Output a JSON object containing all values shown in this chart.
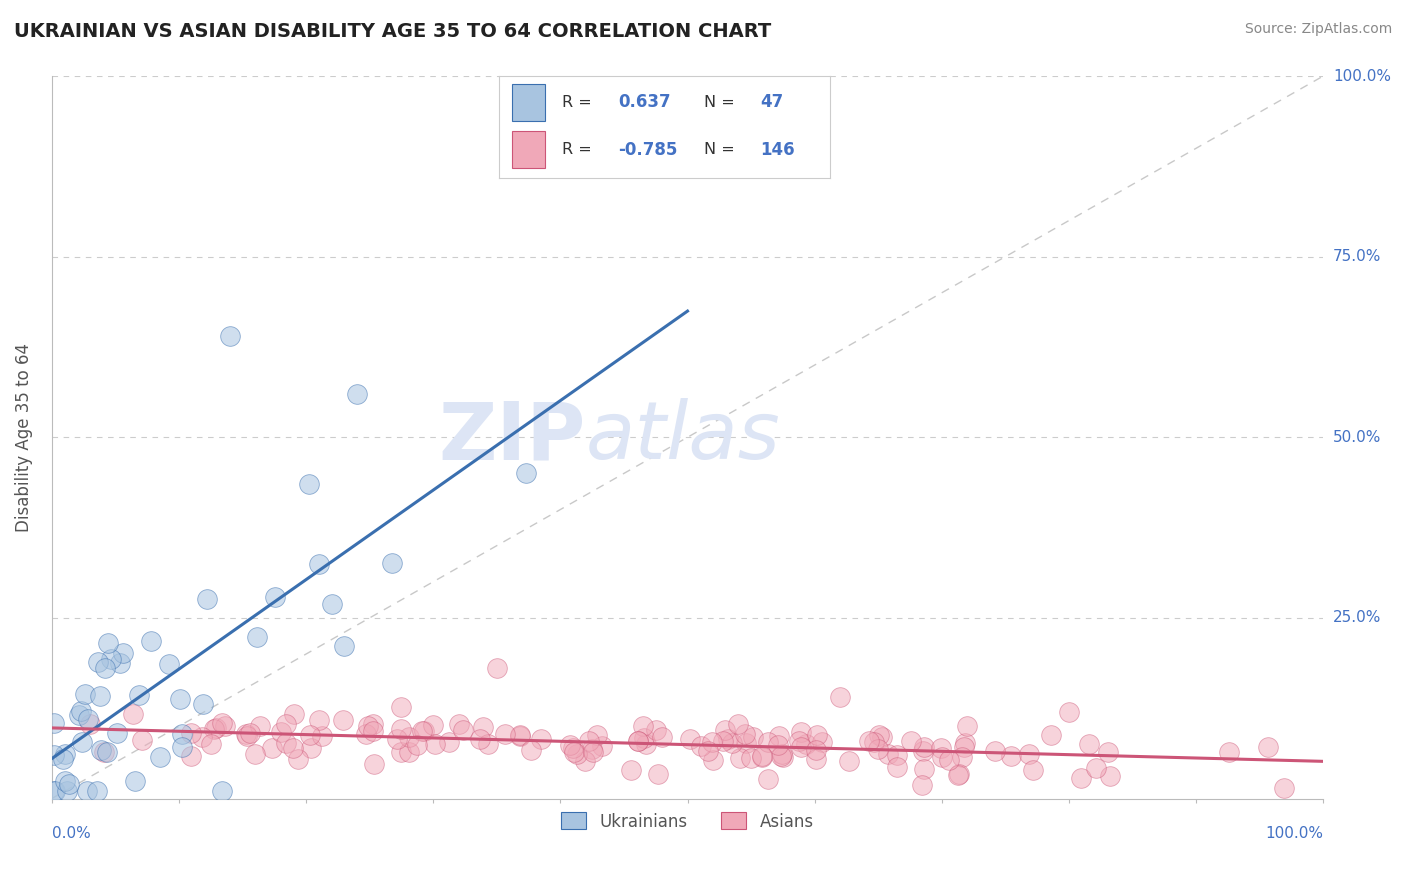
{
  "title": "UKRAINIAN VS ASIAN DISABILITY AGE 35 TO 64 CORRELATION CHART",
  "source": "Source: ZipAtlas.com",
  "ylabel": "Disability Age 35 to 64",
  "ylim": [
    0,
    1.0
  ],
  "xlim": [
    0,
    1.0
  ],
  "ukr_R": 0.637,
  "ukr_N": 47,
  "asian_R": -0.785,
  "asian_N": 146,
  "blue_fill": "#a8c4e0",
  "blue_edge": "#3a6faf",
  "blue_line": "#3a6faf",
  "pink_fill": "#f0a8b8",
  "pink_edge": "#cc5577",
  "pink_line": "#cc5577",
  "ref_line_color": "#bbbbbb",
  "grid_color": "#cccccc",
  "text_color": "#4472c4",
  "label_color": "#555555",
  "title_color": "#222222",
  "background_color": "#ffffff",
  "watermark_color": "#dde5f5",
  "legend_border_color": "#cccccc",
  "seed": 12
}
